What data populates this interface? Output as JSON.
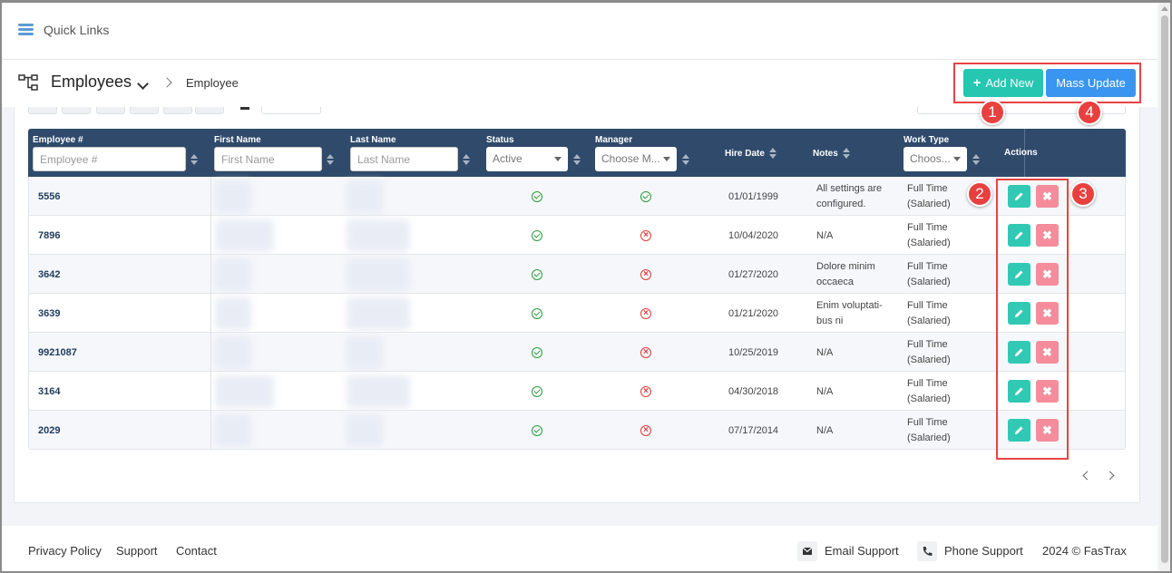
{
  "quicklinks": {
    "label": "Quick Links"
  },
  "header": {
    "title": "Employees",
    "breadcrumb": "Employee",
    "add_new_label": "Add New",
    "mass_update_label": "Mass Update"
  },
  "table": {
    "columns": {
      "employee_no": {
        "label": "Employee #",
        "placeholder": "Employee #"
      },
      "first_name": {
        "label": "First Name",
        "placeholder": "First Name"
      },
      "last_name": {
        "label": "Last Name",
        "placeholder": "Last Name"
      },
      "status": {
        "label": "Status",
        "selected": "Active"
      },
      "manager": {
        "label": "Manager",
        "selected": "Choose M..."
      },
      "hire_date": {
        "label": "Hire Date"
      },
      "notes": {
        "label": "Notes"
      },
      "work_type": {
        "label": "Work Type",
        "selected": "Choos..."
      },
      "actions": {
        "label": "Actions"
      }
    },
    "rows": [
      {
        "id": "5556",
        "status": "active",
        "manager": "yes",
        "hire_date": "01/01/1999",
        "notes": "All settings are configured.",
        "work_type": "Full Time (Salaried)"
      },
      {
        "id": "7896",
        "status": "active",
        "manager": "no",
        "hire_date": "10/04/2020",
        "notes": "N/A",
        "work_type": "Full Time (Salaried)"
      },
      {
        "id": "3642",
        "status": "active",
        "manager": "no",
        "hire_date": "01/27/2020",
        "notes": "Dolore minim occaeca",
        "work_type": "Full Time (Salaried)"
      },
      {
        "id": "3639",
        "status": "active",
        "manager": "no",
        "hire_date": "01/21/2020",
        "notes": "Enim voluptati-bus ni",
        "work_type": "Full Time (Salaried)"
      },
      {
        "id": "9921087",
        "status": "active",
        "manager": "no",
        "hire_date": "10/25/2019",
        "notes": "N/A",
        "work_type": "Full Time (Salaried)"
      },
      {
        "id": "3164",
        "status": "active",
        "manager": "no",
        "hire_date": "04/30/2018",
        "notes": "N/A",
        "work_type": "Full Time (Salaried)"
      },
      {
        "id": "2029",
        "status": "active",
        "manager": "no",
        "hire_date": "07/17/2014",
        "notes": "N/A",
        "work_type": "Full Time (Salaried)"
      }
    ],
    "delete_glyph": "✖"
  },
  "annotations": [
    "1",
    "2",
    "3",
    "4"
  ],
  "footer": {
    "privacy": "Privacy Policy",
    "support": "Support",
    "contact": "Contact",
    "email_support": "Email Support",
    "phone_support": "Phone Support",
    "copyright": "2024 © FasTrax"
  },
  "colors": {
    "header_bg": "#2f4a6b",
    "add_new": "#26c6b0",
    "mass_update": "#3a95f0",
    "highlight": "#e84343"
  }
}
